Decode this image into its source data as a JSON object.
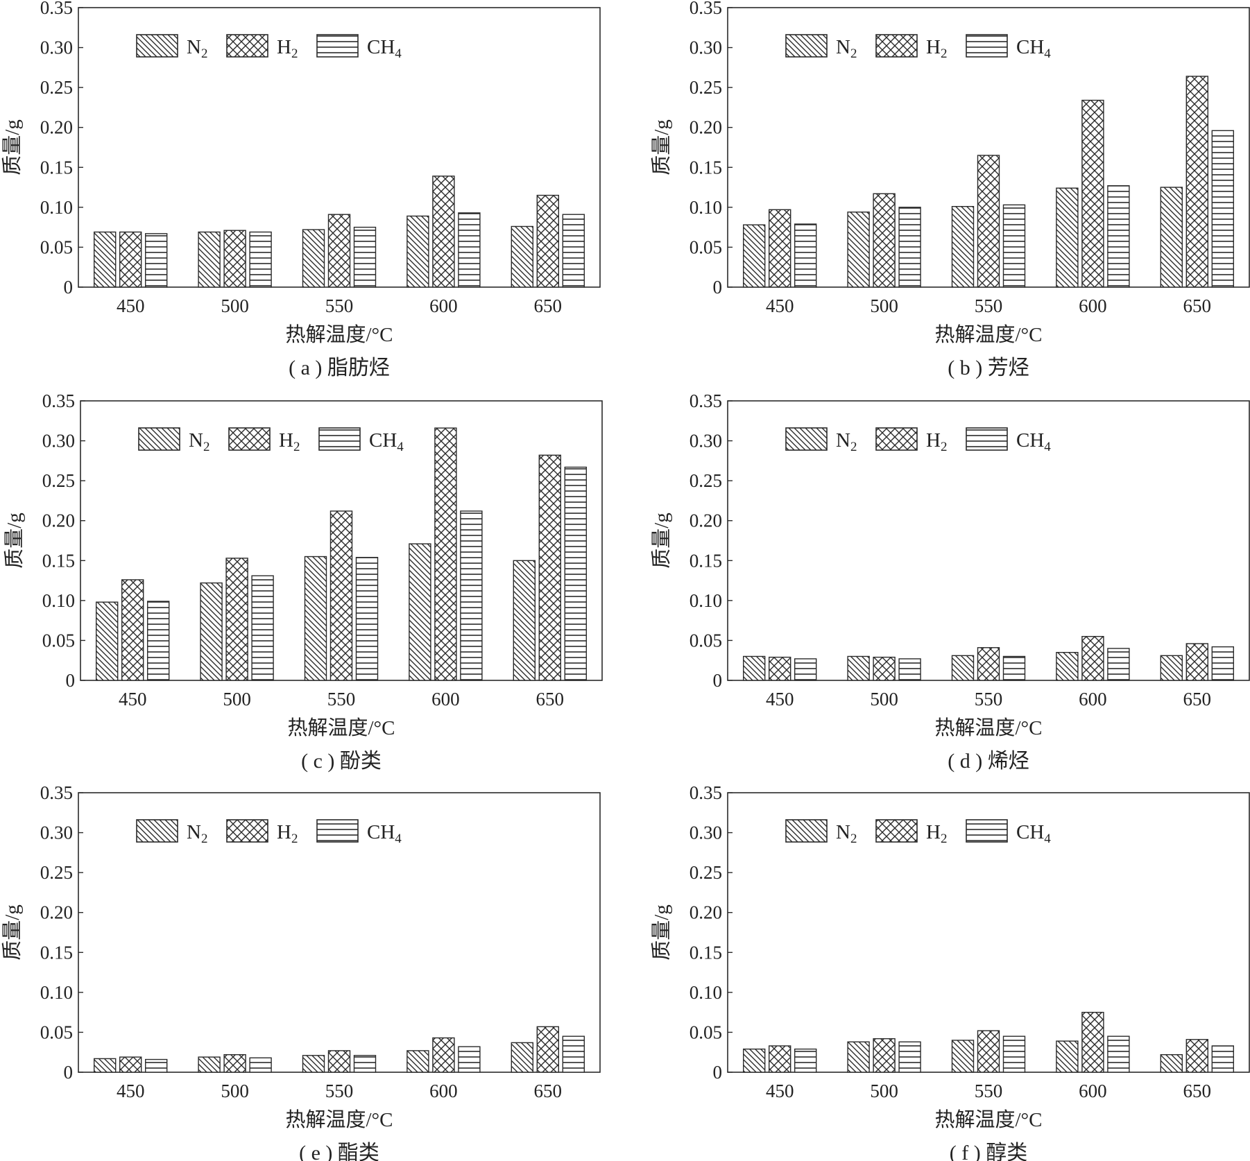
{
  "figure": {
    "colors": {
      "ink": "#2a2a2a",
      "background": "#ffffff"
    },
    "legend": [
      {
        "label": "N",
        "sub": "2",
        "pattern": "diagonal-hatch"
      },
      {
        "label": "H",
        "sub": "2",
        "pattern": "cross-hatch"
      },
      {
        "label": "CH",
        "sub": "4",
        "pattern": "horizontal-lines"
      }
    ]
  },
  "chart_data": [
    {
      "type": "bar",
      "caption": "( a ) 脂肪烃",
      "xlabel": "热解温度/°C",
      "ylabel": "质量/g",
      "categories": [
        "450",
        "500",
        "550",
        "600",
        "650"
      ],
      "ylim": [
        0,
        0.35
      ],
      "yticks": [
        "0",
        "0.05",
        "0.10",
        "0.15",
        "0.20",
        "0.25",
        "0.30",
        "0.35"
      ],
      "series": [
        {
          "name": "N2",
          "values": [
            0.069,
            0.069,
            0.072,
            0.089,
            0.076
          ]
        },
        {
          "name": "H2",
          "values": [
            0.069,
            0.071,
            0.091,
            0.139,
            0.115
          ]
        },
        {
          "name": "CH4",
          "values": [
            0.067,
            0.069,
            0.075,
            0.093,
            0.091
          ]
        }
      ]
    },
    {
      "type": "bar",
      "caption": "( b ) 芳烃",
      "xlabel": "热解温度/°C",
      "ylabel": "质量/g",
      "categories": [
        "450",
        "500",
        "550",
        "600",
        "650"
      ],
      "ylim": [
        0,
        0.35
      ],
      "yticks": [
        "0",
        "0.05",
        "0.10",
        "0.15",
        "0.20",
        "0.25",
        "0.30",
        "0.35"
      ],
      "series": [
        {
          "name": "N2",
          "values": [
            0.078,
            0.094,
            0.101,
            0.124,
            0.125
          ]
        },
        {
          "name": "H2",
          "values": [
            0.097,
            0.117,
            0.165,
            0.234,
            0.264
          ]
        },
        {
          "name": "CH4",
          "values": [
            0.079,
            0.1,
            0.103,
            0.127,
            0.196
          ]
        }
      ]
    },
    {
      "type": "bar",
      "caption": "( c ) 酚类",
      "xlabel": "热解温度/°C",
      "ylabel": "质量/g",
      "categories": [
        "450",
        "500",
        "550",
        "600",
        "650"
      ],
      "ylim": [
        0,
        0.35
      ],
      "yticks": [
        "0",
        "0.05",
        "0.10",
        "0.15",
        "0.20",
        "0.25",
        "0.30",
        "0.35"
      ],
      "series": [
        {
          "name": "N2",
          "values": [
            0.098,
            0.122,
            0.155,
            0.171,
            0.15
          ]
        },
        {
          "name": "H2",
          "values": [
            0.126,
            0.153,
            0.212,
            0.316,
            0.282
          ]
        },
        {
          "name": "CH4",
          "values": [
            0.099,
            0.131,
            0.154,
            0.212,
            0.267
          ]
        }
      ]
    },
    {
      "type": "bar",
      "caption": "( d ) 烯烃",
      "xlabel": "热解温度/°C",
      "ylabel": "质量/g",
      "categories": [
        "450",
        "500",
        "550",
        "600",
        "650"
      ],
      "ylim": [
        0,
        0.35
      ],
      "yticks": [
        "0",
        "0.05",
        "0.10",
        "0.15",
        "0.20",
        "0.25",
        "0.30",
        "0.35"
      ],
      "series": [
        {
          "name": "N2",
          "values": [
            0.03,
            0.03,
            0.031,
            0.035,
            0.031
          ]
        },
        {
          "name": "H2",
          "values": [
            0.029,
            0.029,
            0.041,
            0.055,
            0.046
          ]
        },
        {
          "name": "CH4",
          "values": [
            0.027,
            0.027,
            0.03,
            0.04,
            0.042
          ]
        }
      ]
    },
    {
      "type": "bar",
      "caption": "( e ) 酯类",
      "xlabel": "热解温度/°C",
      "ylabel": "质量/g",
      "categories": [
        "450",
        "500",
        "550",
        "600",
        "650"
      ],
      "ylim": [
        0,
        0.35
      ],
      "yticks": [
        "0",
        "0.05",
        "0.10",
        "0.15",
        "0.20",
        "0.25",
        "0.30",
        "0.35"
      ],
      "series": [
        {
          "name": "N2",
          "values": [
            0.017,
            0.019,
            0.021,
            0.027,
            0.037
          ]
        },
        {
          "name": "H2",
          "values": [
            0.019,
            0.022,
            0.027,
            0.043,
            0.057
          ]
        },
        {
          "name": "CH4",
          "values": [
            0.016,
            0.018,
            0.021,
            0.032,
            0.045
          ]
        }
      ]
    },
    {
      "type": "bar",
      "caption": "( f ) 醇类",
      "xlabel": "热解温度/°C",
      "ylabel": "质量/g",
      "categories": [
        "450",
        "500",
        "550",
        "600",
        "650"
      ],
      "ylim": [
        0,
        0.35
      ],
      "yticks": [
        "0",
        "0.05",
        "0.10",
        "0.15",
        "0.20",
        "0.25",
        "0.30",
        "0.35"
      ],
      "series": [
        {
          "name": "N2",
          "values": [
            0.029,
            0.038,
            0.04,
            0.039,
            0.022
          ]
        },
        {
          "name": "H2",
          "values": [
            0.033,
            0.042,
            0.052,
            0.075,
            0.041
          ]
        },
        {
          "name": "CH4",
          "values": [
            0.029,
            0.038,
            0.045,
            0.045,
            0.033
          ]
        }
      ]
    }
  ]
}
